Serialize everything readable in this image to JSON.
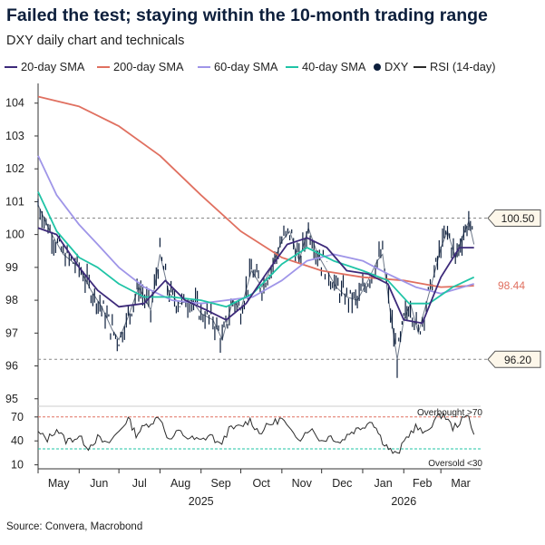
{
  "title": "Failed the test; staying within the 10-month trading range",
  "subtitle": "DXY daily chart and technicals",
  "source": "Source: Convera, Macrobond",
  "legend": [
    {
      "label": "20-day SMA",
      "color": "#3d2a7a",
      "kind": "line"
    },
    {
      "label": "200-day SMA",
      "color": "#e07060",
      "kind": "line"
    },
    {
      "label": "60-day SMA",
      "color": "#9f95e8",
      "kind": "line"
    },
    {
      "label": "40-day SMA",
      "color": "#1fc4a6",
      "kind": "line"
    },
    {
      "label": "DXY",
      "color": "#0d1f3c",
      "kind": "dot"
    },
    {
      "label": "RSI (14-day)",
      "color": "#2b2b2b",
      "kind": "line"
    }
  ],
  "chart_data": {
    "type": "line",
    "x_axis": {
      "months": [
        "May",
        "Jun",
        "Jul",
        "Aug",
        "Sep",
        "Oct",
        "Nov",
        "Dec",
        "Jan",
        "Feb",
        "Mar"
      ],
      "years": [
        "2025",
        "2026"
      ]
    },
    "main_panel": {
      "ylim": [
        94.8,
        104.6
      ],
      "yticks": [
        "95",
        "96",
        "97",
        "98",
        "99",
        "100",
        "101",
        "102",
        "103",
        "104"
      ],
      "reference_lines": [
        {
          "value": 100.5,
          "label": "100.50"
        },
        {
          "value": 96.2,
          "label": "96.20"
        }
      ],
      "annotation_98_44": {
        "value": 98.44,
        "label": "98.44",
        "color": "#e07060"
      },
      "series": [
        {
          "name": "DXY",
          "color": "#0d1f3c",
          "points": [
            [
              "2025-05-01",
              100.9
            ],
            [
              "2025-05-10",
              100.1
            ],
            [
              "2025-05-20",
              99.4
            ],
            [
              "2025-06-01",
              99.0
            ],
            [
              "2025-06-10",
              98.3
            ],
            [
              "2025-06-18",
              97.8
            ],
            [
              "2025-06-26",
              97.1
            ],
            [
              "2025-07-01",
              96.8
            ],
            [
              "2025-07-08",
              97.5
            ],
            [
              "2025-07-16",
              98.4
            ],
            [
              "2025-07-25",
              97.7
            ],
            [
              "2025-08-01",
              99.4
            ],
            [
              "2025-08-08",
              98.2
            ],
            [
              "2025-08-16",
              97.9
            ],
            [
              "2025-08-25",
              98.0
            ],
            [
              "2025-09-01",
              97.6
            ],
            [
              "2025-09-10",
              97.4
            ],
            [
              "2025-09-17",
              96.8
            ],
            [
              "2025-09-25",
              98.0
            ],
            [
              "2025-10-01",
              97.7
            ],
            [
              "2025-10-09",
              98.9
            ],
            [
              "2025-10-17",
              98.4
            ],
            [
              "2025-10-24",
              99.0
            ],
            [
              "2025-11-01",
              99.8
            ],
            [
              "2025-11-07",
              100.1
            ],
            [
              "2025-11-14",
              99.2
            ],
            [
              "2025-11-21",
              100.2
            ],
            [
              "2025-11-28",
              99.4
            ],
            [
              "2025-12-05",
              98.9
            ],
            [
              "2025-12-12",
              98.4
            ],
            [
              "2025-12-20",
              98.1
            ],
            [
              "2025-12-28",
              98.0
            ],
            [
              "2026-01-05",
              98.6
            ],
            [
              "2026-01-12",
              99.2
            ],
            [
              "2026-01-16",
              99.4
            ],
            [
              "2026-01-22",
              97.6
            ],
            [
              "2026-01-27",
              96.2
            ],
            [
              "2026-02-01",
              97.4
            ],
            [
              "2026-02-06",
              97.9
            ],
            [
              "2026-02-12",
              97.0
            ],
            [
              "2026-02-18",
              97.9
            ],
            [
              "2026-02-24",
              98.8
            ],
            [
              "2026-03-01",
              99.6
            ],
            [
              "2026-03-06",
              100.1
            ],
            [
              "2026-03-12",
              99.3
            ],
            [
              "2026-03-17",
              99.9
            ],
            [
              "2026-03-22",
              100.4
            ],
            [
              "2026-03-26",
              99.7
            ]
          ]
        },
        {
          "name": "20-day SMA",
          "color": "#3d2a7a",
          "points": [
            [
              "2025-05-01",
              100.2
            ],
            [
              "2025-05-15",
              100.0
            ],
            [
              "2025-06-01",
              99.0
            ],
            [
              "2025-06-15",
              98.3
            ],
            [
              "2025-07-01",
              97.8
            ],
            [
              "2025-07-20",
              97.9
            ],
            [
              "2025-08-05",
              98.6
            ],
            [
              "2025-08-20",
              98.0
            ],
            [
              "2025-09-05",
              97.7
            ],
            [
              "2025-09-20",
              97.4
            ],
            [
              "2025-10-05",
              97.9
            ],
            [
              "2025-10-20",
              98.8
            ],
            [
              "2025-11-05",
              99.7
            ],
            [
              "2025-11-20",
              99.9
            ],
            [
              "2025-12-05",
              99.6
            ],
            [
              "2025-12-20",
              98.9
            ],
            [
              "2026-01-05",
              98.8
            ],
            [
              "2026-01-20",
              98.5
            ],
            [
              "2026-02-01",
              97.4
            ],
            [
              "2026-02-15",
              97.3
            ],
            [
              "2026-03-01",
              98.7
            ],
            [
              "2026-03-15",
              99.6
            ],
            [
              "2026-03-26",
              99.6
            ]
          ]
        },
        {
          "name": "200-day SMA",
          "color": "#e07060",
          "points": [
            [
              "2025-05-01",
              104.2
            ],
            [
              "2025-06-01",
              103.9
            ],
            [
              "2025-07-01",
              103.3
            ],
            [
              "2025-08-01",
              102.4
            ],
            [
              "2025-09-01",
              101.2
            ],
            [
              "2025-10-01",
              100.1
            ],
            [
              "2025-11-01",
              99.3
            ],
            [
              "2025-12-01",
              98.9
            ],
            [
              "2026-01-01",
              98.7
            ],
            [
              "2026-02-01",
              98.6
            ],
            [
              "2026-03-01",
              98.4
            ],
            [
              "2026-03-26",
              98.44
            ]
          ]
        },
        {
          "name": "60-day SMA",
          "color": "#9f95e8",
          "points": [
            [
              "2025-05-01",
              102.4
            ],
            [
              "2025-05-15",
              101.2
            ],
            [
              "2025-06-01",
              100.3
            ],
            [
              "2025-06-15",
              99.7
            ],
            [
              "2025-07-01",
              99.0
            ],
            [
              "2025-07-20",
              98.4
            ],
            [
              "2025-08-10",
              98.0
            ],
            [
              "2025-09-01",
              97.9
            ],
            [
              "2025-09-20",
              98.0
            ],
            [
              "2025-10-10",
              98.1
            ],
            [
              "2025-11-01",
              98.6
            ],
            [
              "2025-11-20",
              99.2
            ],
            [
              "2025-12-10",
              99.4
            ],
            [
              "2026-01-01",
              99.2
            ],
            [
              "2026-01-20",
              98.8
            ],
            [
              "2026-02-10",
              98.4
            ],
            [
              "2026-03-01",
              98.2
            ],
            [
              "2026-03-26",
              98.5
            ]
          ]
        },
        {
          "name": "40-day SMA",
          "color": "#1fc4a6",
          "points": [
            [
              "2025-05-01",
              101.3
            ],
            [
              "2025-05-15",
              100.1
            ],
            [
              "2025-06-01",
              99.3
            ],
            [
              "2025-06-15",
              99.0
            ],
            [
              "2025-07-01",
              98.5
            ],
            [
              "2025-07-20",
              98.1
            ],
            [
              "2025-08-10",
              98.1
            ],
            [
              "2025-09-01",
              98.0
            ],
            [
              "2025-09-20",
              97.8
            ],
            [
              "2025-10-10",
              98.2
            ],
            [
              "2025-11-01",
              99.1
            ],
            [
              "2025-11-20",
              99.6
            ],
            [
              "2025-12-10",
              99.2
            ],
            [
              "2026-01-01",
              98.9
            ],
            [
              "2026-01-20",
              98.6
            ],
            [
              "2026-02-05",
              97.9
            ],
            [
              "2026-02-20",
              97.9
            ],
            [
              "2026-03-10",
              98.4
            ],
            [
              "2026-03-26",
              98.7
            ]
          ]
        }
      ]
    },
    "rsi_panel": {
      "ylim": [
        5,
        80
      ],
      "yticks": [
        "10",
        "40",
        "70"
      ],
      "overbought": {
        "value": 70,
        "label": "Overbought >70",
        "color": "#e07060"
      },
      "oversold": {
        "value": 30,
        "label": "Oversold <30",
        "color": "#1fc4a6"
      },
      "series": [
        {
          "name": "RSI (14-day)",
          "color": "#2b2b2b",
          "points": [
            [
              "2025-05-01",
              50
            ],
            [
              "2025-05-08",
              42
            ],
            [
              "2025-05-15",
              55
            ],
            [
              "2025-05-22",
              40
            ],
            [
              "2025-06-01",
              45
            ],
            [
              "2025-06-08",
              32
            ],
            [
              "2025-06-15",
              44
            ],
            [
              "2025-06-22",
              35
            ],
            [
              "2025-07-01",
              52
            ],
            [
              "2025-07-08",
              68
            ],
            [
              "2025-07-14",
              48
            ],
            [
              "2025-07-20",
              58
            ],
            [
              "2025-08-01",
              70
            ],
            [
              "2025-08-08",
              40
            ],
            [
              "2025-08-15",
              52
            ],
            [
              "2025-08-22",
              44
            ],
            [
              "2025-09-01",
              40
            ],
            [
              "2025-09-08",
              48
            ],
            [
              "2025-09-15",
              34
            ],
            [
              "2025-09-22",
              54
            ],
            [
              "2025-10-01",
              58
            ],
            [
              "2025-10-08",
              66
            ],
            [
              "2025-10-15",
              50
            ],
            [
              "2025-10-22",
              60
            ],
            [
              "2025-11-01",
              68
            ],
            [
              "2025-11-08",
              50
            ],
            [
              "2025-11-15",
              44
            ],
            [
              "2025-11-22",
              56
            ],
            [
              "2025-12-01",
              40
            ],
            [
              "2025-12-08",
              46
            ],
            [
              "2025-12-15",
              38
            ],
            [
              "2025-12-22",
              50
            ],
            [
              "2026-01-01",
              58
            ],
            [
              "2026-01-08",
              66
            ],
            [
              "2026-01-16",
              40
            ],
            [
              "2026-01-22",
              28
            ],
            [
              "2026-01-27",
              22
            ],
            [
              "2026-02-03",
              44
            ],
            [
              "2026-02-10",
              58
            ],
            [
              "2026-02-17",
              48
            ],
            [
              "2026-02-24",
              66
            ],
            [
              "2026-03-03",
              74
            ],
            [
              "2026-03-10",
              56
            ],
            [
              "2026-03-17",
              66
            ],
            [
              "2026-03-22",
              72
            ],
            [
              "2026-03-26",
              48
            ]
          ]
        }
      ]
    }
  }
}
